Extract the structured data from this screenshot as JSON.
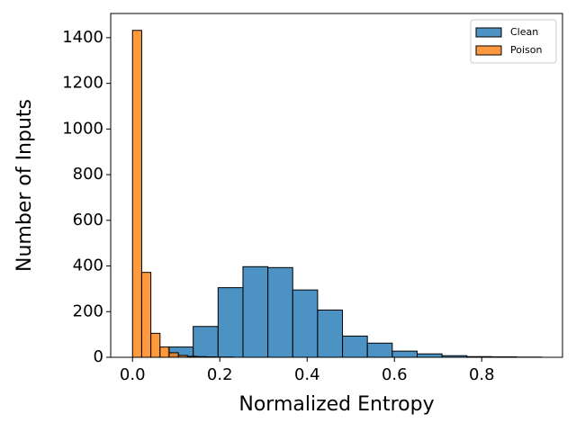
{
  "chart_data": {
    "type": "histogram",
    "xlabel": "Normalized Entropy",
    "ylabel": "Number of Inputs",
    "xlim": [
      -0.05,
      0.985
    ],
    "ylim": [
      0,
      1506
    ],
    "xticks": [
      {
        "value": 0,
        "label": "0.0"
      },
      0.2,
      0.4,
      0.6,
      0.8
    ],
    "yticks": [
      0,
      200,
      400,
      600,
      800,
      1000,
      1200,
      1400
    ],
    "legend": "upper right",
    "series": [
      {
        "name": "Clean",
        "color": "#1f77b4",
        "bins": [
          0.082,
          0.139,
          0.196,
          0.253,
          0.31,
          0.367,
          0.424,
          0.481,
          0.538,
          0.595,
          0.652,
          0.709,
          0.766,
          0.823,
          0.88,
          0.937
        ],
        "values": [
          45,
          135,
          305,
          397,
          393,
          295,
          207,
          93,
          62,
          27,
          15,
          7,
          3,
          2,
          1
        ]
      },
      {
        "name": "Poison",
        "color": "#ff7f0e",
        "bins": [
          0,
          0.021,
          0.042,
          0.063,
          0.084,
          0.105,
          0.126,
          0.147,
          0.168,
          0.189,
          0.21,
          0.231
        ],
        "values": [
          1432,
          372,
          105,
          45,
          20,
          8,
          4,
          3,
          2,
          1,
          1
        ]
      }
    ]
  }
}
